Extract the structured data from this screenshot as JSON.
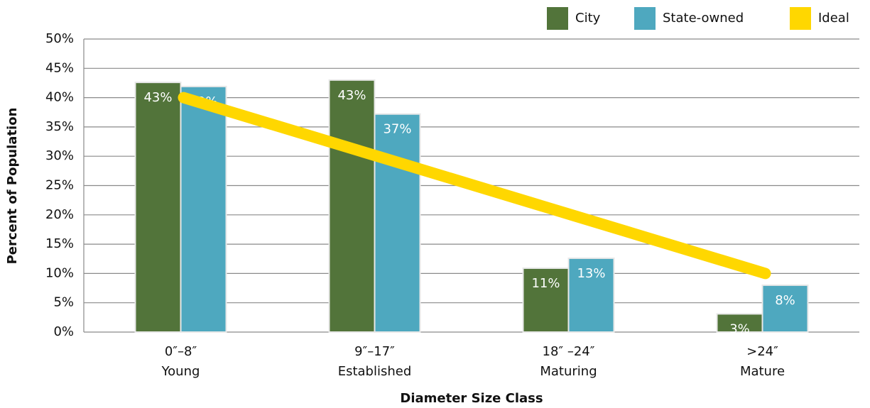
{
  "chart_data": {
    "type": "bar",
    "title_x": "Diameter Size Class",
    "title_y": "Percent of Population",
    "categories": [
      [
        "0″–8″",
        "Young"
      ],
      [
        "9″–17″",
        "Established"
      ],
      [
        "18″ –24″",
        "Maturing"
      ],
      [
        ">24″",
        "Mature"
      ]
    ],
    "series": [
      {
        "name": "City",
        "color": "#52743a",
        "type": "bar",
        "values": [
          42.6,
          43,
          10.9,
          3.1
        ],
        "value_labels": [
          "43%",
          "43%",
          "11%",
          "3%"
        ]
      },
      {
        "name": "State-owned",
        "color": "#4ea8bf",
        "type": "bar",
        "values": [
          41.9,
          37.2,
          12.6,
          8.0
        ],
        "value_labels": [
          "42%",
          "37%",
          "13%",
          "8%"
        ]
      },
      {
        "name": "Ideal",
        "color": "#ffd700",
        "type": "line",
        "values": [
          40,
          30,
          20,
          10
        ]
      }
    ],
    "ylim": [
      0,
      50
    ],
    "yticks": [
      {
        "value": 0,
        "label": "0%"
      },
      {
        "value": 5,
        "label": "5%"
      },
      {
        "value": 10,
        "label": "10%"
      },
      {
        "value": 15,
        "label": "15%"
      },
      {
        "value": 20,
        "label": "20%"
      },
      {
        "value": 25,
        "label": "25%"
      },
      {
        "value": 30,
        "label": "30%"
      },
      {
        "value": 35,
        "label": "35%"
      },
      {
        "value": 40,
        "label": "40%"
      },
      {
        "value": 45,
        "label": "45%"
      },
      {
        "value": 50,
        "label": "50%"
      }
    ],
    "grid": true,
    "legend": "top-right"
  }
}
